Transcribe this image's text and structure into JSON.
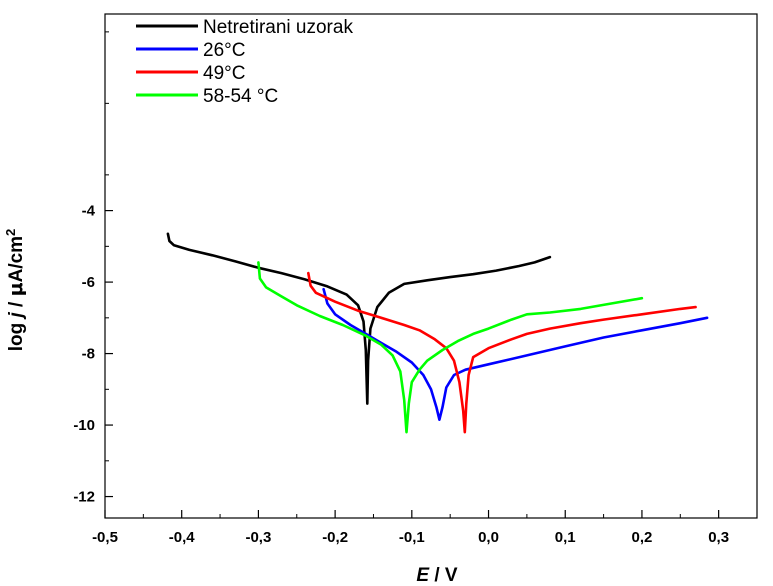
{
  "chart_data": {
    "type": "line",
    "xlabel": "E / V",
    "xlabel_parts": [
      "E",
      " / V"
    ],
    "ylabel": "log j / μA/cm2",
    "ylabel_parts": [
      "log ",
      "j",
      " / ",
      "μ",
      "A/cm",
      "2"
    ],
    "xlim": [
      -0.5,
      0.35
    ],
    "ylim": [
      -12.6,
      1.5
    ],
    "x_ticks": [
      -0.5,
      -0.4,
      -0.3,
      -0.2,
      -0.1,
      0.0,
      0.1,
      0.2,
      0.3
    ],
    "x_tick_labels": [
      "-0,5",
      "-0,4",
      "-0,3",
      "-0,2",
      "-0,1",
      "0,0",
      "0,1",
      "0,2",
      "0,3"
    ],
    "y_ticks": [
      -12,
      -10,
      -8,
      -6,
      -4
    ],
    "y_tick_labels": [
      "-12",
      "-10",
      "-8",
      "-6",
      "-4"
    ],
    "legend_position": "top-left",
    "grid": false,
    "series": [
      {
        "name": "Netretirani uzorak",
        "color": "#000000",
        "points": [
          [
            -0.418,
            -4.65
          ],
          [
            -0.416,
            -4.85
          ],
          [
            -0.41,
            -4.97
          ],
          [
            -0.39,
            -5.1
          ],
          [
            -0.36,
            -5.25
          ],
          [
            -0.33,
            -5.42
          ],
          [
            -0.3,
            -5.6
          ],
          [
            -0.27,
            -5.75
          ],
          [
            -0.24,
            -5.92
          ],
          [
            -0.21,
            -6.12
          ],
          [
            -0.185,
            -6.35
          ],
          [
            -0.17,
            -6.65
          ],
          [
            -0.163,
            -7.1
          ],
          [
            -0.16,
            -7.9
          ],
          [
            -0.158,
            -9.4
          ],
          [
            -0.157,
            -8.2
          ],
          [
            -0.154,
            -7.3
          ],
          [
            -0.145,
            -6.7
          ],
          [
            -0.13,
            -6.3
          ],
          [
            -0.11,
            -6.05
          ],
          [
            -0.08,
            -5.95
          ],
          [
            -0.05,
            -5.86
          ],
          [
            -0.02,
            -5.78
          ],
          [
            0.01,
            -5.68
          ],
          [
            0.04,
            -5.55
          ],
          [
            0.06,
            -5.45
          ],
          [
            0.08,
            -5.3
          ]
        ]
      },
      {
        "name": "26°C",
        "color": "#0000ff",
        "points": [
          [
            -0.215,
            -6.2
          ],
          [
            -0.21,
            -6.6
          ],
          [
            -0.2,
            -6.9
          ],
          [
            -0.18,
            -7.2
          ],
          [
            -0.16,
            -7.45
          ],
          [
            -0.14,
            -7.7
          ],
          [
            -0.12,
            -7.95
          ],
          [
            -0.1,
            -8.25
          ],
          [
            -0.085,
            -8.6
          ],
          [
            -0.075,
            -9.0
          ],
          [
            -0.068,
            -9.5
          ],
          [
            -0.064,
            -9.85
          ],
          [
            -0.06,
            -9.5
          ],
          [
            -0.055,
            -8.95
          ],
          [
            -0.045,
            -8.6
          ],
          [
            -0.03,
            -8.45
          ],
          [
            0.0,
            -8.3
          ],
          [
            0.05,
            -8.05
          ],
          [
            0.1,
            -7.8
          ],
          [
            0.15,
            -7.55
          ],
          [
            0.2,
            -7.35
          ],
          [
            0.25,
            -7.15
          ],
          [
            0.285,
            -7.0
          ]
        ]
      },
      {
        "name": "49°C",
        "color": "#ff0000",
        "points": [
          [
            -0.235,
            -5.75
          ],
          [
            -0.232,
            -6.1
          ],
          [
            -0.225,
            -6.3
          ],
          [
            -0.2,
            -6.55
          ],
          [
            -0.17,
            -6.8
          ],
          [
            -0.14,
            -7.0
          ],
          [
            -0.11,
            -7.2
          ],
          [
            -0.09,
            -7.35
          ],
          [
            -0.07,
            -7.6
          ],
          [
            -0.055,
            -7.85
          ],
          [
            -0.045,
            -8.2
          ],
          [
            -0.038,
            -8.8
          ],
          [
            -0.033,
            -9.6
          ],
          [
            -0.031,
            -10.2
          ],
          [
            -0.029,
            -9.4
          ],
          [
            -0.026,
            -8.6
          ],
          [
            -0.02,
            -8.1
          ],
          [
            0.0,
            -7.85
          ],
          [
            0.03,
            -7.6
          ],
          [
            0.05,
            -7.45
          ],
          [
            0.08,
            -7.3
          ],
          [
            0.12,
            -7.15
          ],
          [
            0.15,
            -7.05
          ],
          [
            0.2,
            -6.9
          ],
          [
            0.25,
            -6.75
          ],
          [
            0.27,
            -6.7
          ]
        ]
      },
      {
        "name": "58-54 °C",
        "color": "#00ff00",
        "points": [
          [
            -0.3,
            -5.45
          ],
          [
            -0.298,
            -5.9
          ],
          [
            -0.29,
            -6.15
          ],
          [
            -0.27,
            -6.4
          ],
          [
            -0.25,
            -6.65
          ],
          [
            -0.22,
            -6.95
          ],
          [
            -0.19,
            -7.2
          ],
          [
            -0.16,
            -7.5
          ],
          [
            -0.14,
            -7.75
          ],
          [
            -0.125,
            -8.05
          ],
          [
            -0.115,
            -8.5
          ],
          [
            -0.11,
            -9.3
          ],
          [
            -0.107,
            -10.2
          ],
          [
            -0.104,
            -9.4
          ],
          [
            -0.1,
            -8.8
          ],
          [
            -0.09,
            -8.45
          ],
          [
            -0.08,
            -8.2
          ],
          [
            -0.06,
            -7.9
          ],
          [
            -0.04,
            -7.65
          ],
          [
            -0.02,
            -7.45
          ],
          [
            0.0,
            -7.3
          ],
          [
            0.03,
            -7.05
          ],
          [
            0.05,
            -6.9
          ],
          [
            0.08,
            -6.85
          ],
          [
            0.12,
            -6.75
          ],
          [
            0.16,
            -6.6
          ],
          [
            0.2,
            -6.45
          ]
        ]
      }
    ]
  }
}
